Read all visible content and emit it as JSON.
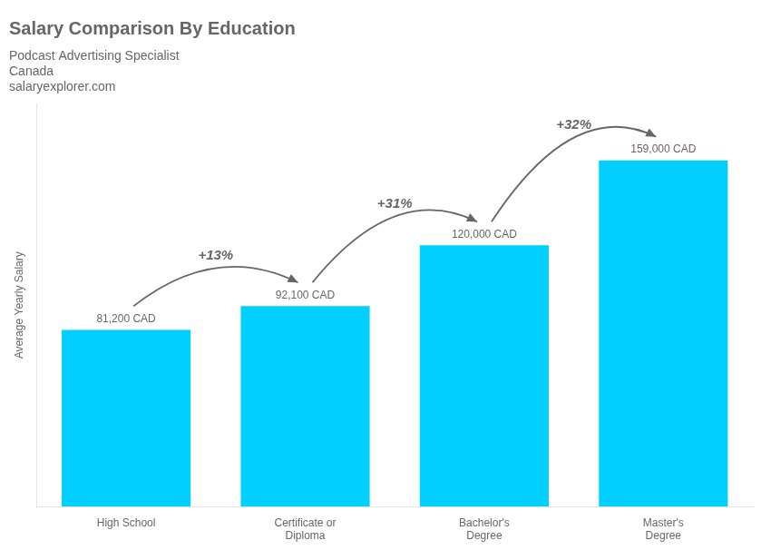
{
  "chart_data": {
    "type": "bar",
    "title": "Salary Comparison By Education",
    "subtitle": "Podcast Advertising Specialist",
    "annotations": [
      {
        "text": "Canada"
      },
      {
        "text": "salaryexplorer.com"
      },
      {
        "text": "+13%",
        "from": "High School",
        "to": "Certificate or\nDiploma"
      },
      {
        "text": "+31%",
        "from": "Certificate or\nDiploma",
        "to": "Bachelor's\nDegree"
      },
      {
        "text": "+32%",
        "from": "Bachelor's\nDegree",
        "to": "Master's\nDegree"
      }
    ],
    "categories": [
      "High School",
      "Certificate or\nDiploma",
      "Bachelor's\nDegree",
      "Master's\nDegree"
    ],
    "values": [
      81200,
      92100,
      120000,
      159000
    ],
    "value_labels": [
      "81,200 CAD",
      "92,100 CAD",
      "120,000 CAD",
      "159,000 CAD"
    ],
    "data_labels": true,
    "color": "#00cfff",
    "ylabel": "Average Yearly Salary",
    "ylim": [
      0,
      185000
    ],
    "grid": false,
    "tick_labels": "x"
  }
}
